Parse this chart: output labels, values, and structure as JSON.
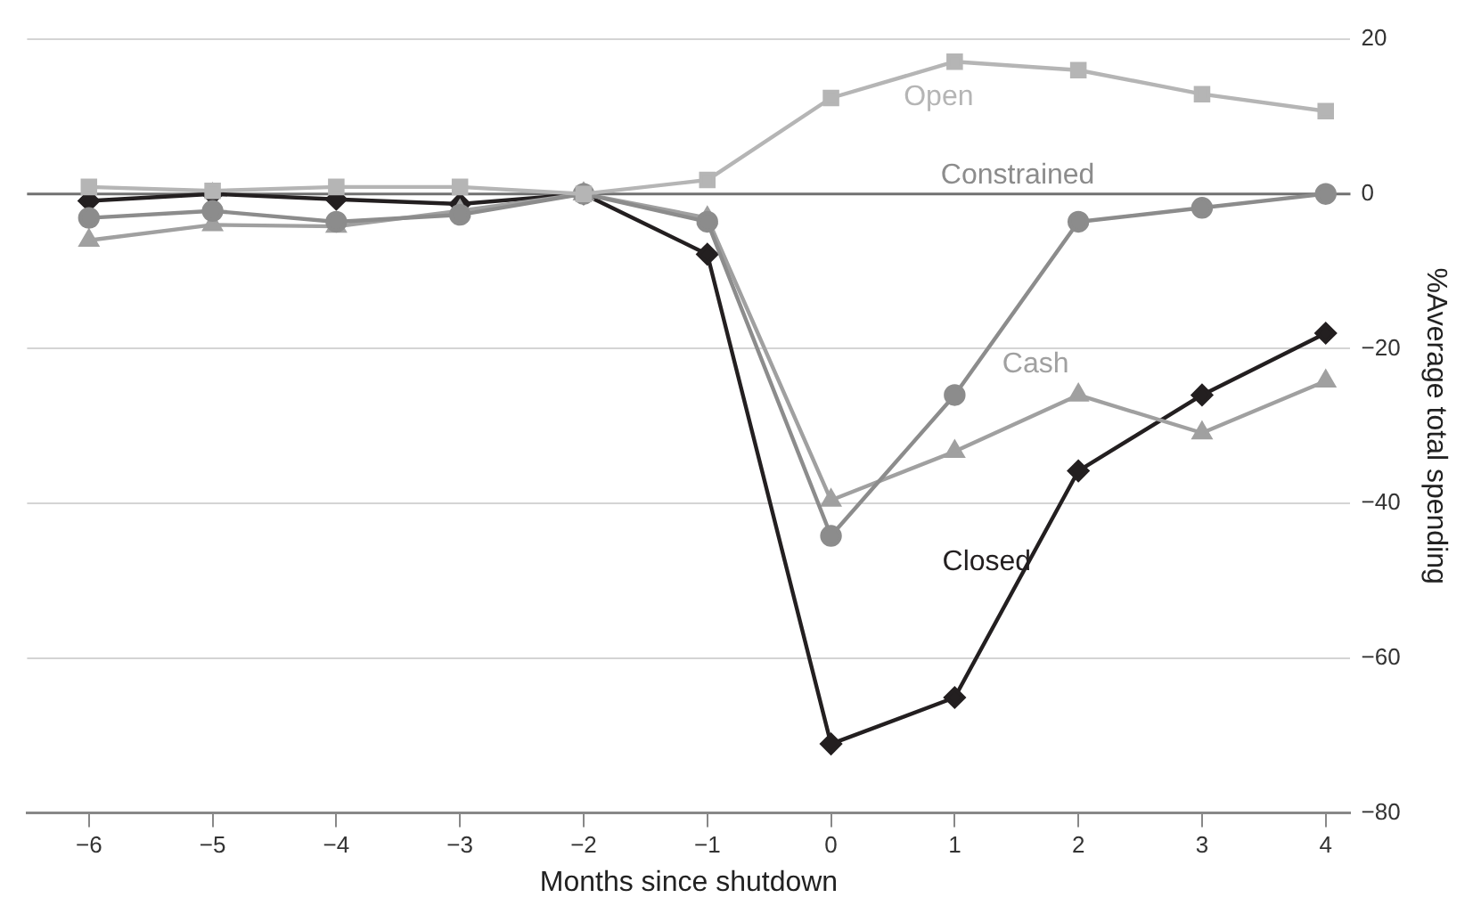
{
  "chart_data": {
    "type": "line",
    "xlabel": "Months since shutdown",
    "ylabel": "%Average total spending",
    "x": [
      -6,
      -5,
      -4,
      -3,
      -2,
      -1,
      0,
      1,
      2,
      3,
      4
    ],
    "xlim": [
      -6.5,
      4.2
    ],
    "xticks": [
      -6,
      -5,
      -4,
      -3,
      -2,
      -1,
      0,
      1,
      2,
      3,
      4
    ],
    "ylim": [
      -80,
      20
    ],
    "yticks": [
      -80,
      -60,
      -40,
      -20,
      0,
      20
    ],
    "grid": "y",
    "legend": false,
    "ref_lines": [
      {
        "axis": "y",
        "value": 0,
        "color": "#707070"
      }
    ],
    "series": [
      {
        "name": "Open",
        "color": "#b5b5b5",
        "marker": "square",
        "values": [
          0.9,
          0.4,
          0.9,
          0.9,
          0,
          1.8,
          12.4,
          17.1,
          16,
          12.9,
          10.7
        ]
      },
      {
        "name": "Constrained",
        "color": "#8c8c8c",
        "marker": "circle",
        "values": [
          -3.1,
          -2.2,
          -3.6,
          -2.7,
          0,
          -3.6,
          -44.2,
          -26,
          -3.6,
          -1.8,
          0
        ]
      },
      {
        "name": "Cash",
        "color": "#a0a0a0",
        "marker": "triangle",
        "values": [
          -6,
          -4,
          -4.2,
          -2.2,
          0,
          -3.1,
          -39.6,
          -33.3,
          -26,
          -30.9,
          -24.2
        ]
      },
      {
        "name": "Closed",
        "color": "#231f20",
        "marker": "diamond",
        "values": [
          -0.9,
          0,
          -0.7,
          -1.3,
          0,
          -7.8,
          -71.1,
          -65.1,
          -35.8,
          -26,
          -18
        ]
      }
    ]
  }
}
